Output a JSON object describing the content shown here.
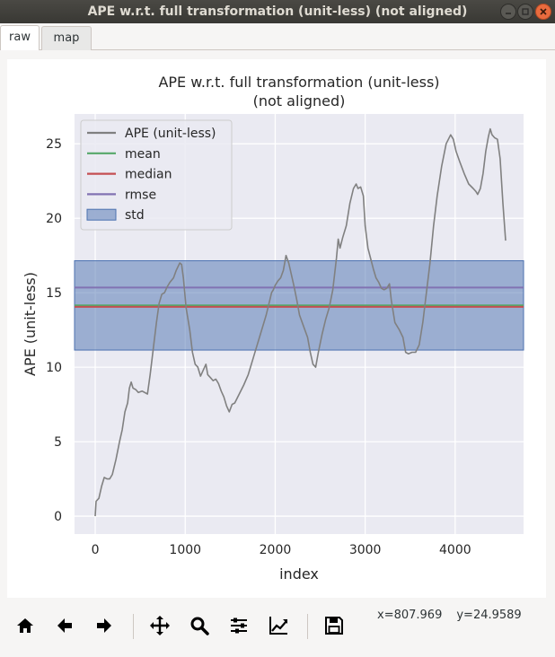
{
  "window": {
    "title": "APE w.r.t. full transformation (unit-less) (not aligned)"
  },
  "tabs": [
    {
      "label": "raw",
      "active": true
    },
    {
      "label": "map",
      "active": false
    }
  ],
  "toolbar": {
    "icons": [
      "home-icon",
      "back-arrow-icon",
      "forward-arrow-icon",
      "pan-icon",
      "zoom-icon",
      "subplots-icon",
      "edit-axes-icon",
      "save-icon"
    ],
    "coords": {
      "x": "x=807.969",
      "y": "y=24.9589"
    }
  },
  "chart_data": {
    "type": "line",
    "title_line1": "APE w.r.t. full transformation (unit-less)",
    "title_line2": "(not aligned)",
    "xlabel": "index",
    "ylabel": "APE (unit-less)",
    "xlim": [
      -230,
      4760
    ],
    "ylim": [
      -1.2,
      27
    ],
    "xticks": [
      0,
      1000,
      2000,
      3000,
      4000
    ],
    "yticks": [
      0,
      5,
      10,
      15,
      20,
      25
    ],
    "grid": true,
    "legend_position": "top-left",
    "legend": [
      {
        "label": "APE (unit-less)",
        "color": "#808080",
        "kind": "line"
      },
      {
        "label": "mean",
        "color": "#55a868",
        "kind": "line"
      },
      {
        "label": "median",
        "color": "#c44e52",
        "kind": "line"
      },
      {
        "label": "rmse",
        "color": "#8172b2",
        "kind": "line"
      },
      {
        "label": "std",
        "color": "#4c72b0",
        "kind": "patch"
      }
    ],
    "stats": {
      "mean": 14.15,
      "median": 14.05,
      "rmse": 15.35,
      "std_low": 11.15,
      "std_high": 17.15
    },
    "series": {
      "name": "APE (unit-less)",
      "color": "#808080",
      "points": [
        [
          0,
          0.0
        ],
        [
          10,
          1.0
        ],
        [
          40,
          1.2
        ],
        [
          70,
          2.0
        ],
        [
          100,
          2.6
        ],
        [
          130,
          2.5
        ],
        [
          160,
          2.5
        ],
        [
          190,
          2.8
        ],
        [
          230,
          3.8
        ],
        [
          270,
          5.0
        ],
        [
          300,
          5.8
        ],
        [
          330,
          7.0
        ],
        [
          360,
          7.6
        ],
        [
          380,
          8.6
        ],
        [
          400,
          9.0
        ],
        [
          420,
          8.6
        ],
        [
          450,
          8.5
        ],
        [
          480,
          8.3
        ],
        [
          520,
          8.4
        ],
        [
          580,
          8.2
        ],
        [
          610,
          9.5
        ],
        [
          640,
          11.0
        ],
        [
          680,
          13.0
        ],
        [
          710,
          14.3
        ],
        [
          740,
          14.9
        ],
        [
          770,
          15.0
        ],
        [
          800,
          15.4
        ],
        [
          830,
          15.7
        ],
        [
          870,
          16.0
        ],
        [
          900,
          16.5
        ],
        [
          940,
          17.0
        ],
        [
          960,
          16.9
        ],
        [
          980,
          16.0
        ],
        [
          1010,
          14.0
        ],
        [
          1050,
          12.5
        ],
        [
          1080,
          11.0
        ],
        [
          1110,
          10.2
        ],
        [
          1140,
          10.0
        ],
        [
          1170,
          9.4
        ],
        [
          1200,
          9.8
        ],
        [
          1230,
          10.2
        ],
        [
          1250,
          9.5
        ],
        [
          1280,
          9.3
        ],
        [
          1310,
          9.1
        ],
        [
          1340,
          9.2
        ],
        [
          1370,
          8.9
        ],
        [
          1400,
          8.4
        ],
        [
          1430,
          8.0
        ],
        [
          1460,
          7.4
        ],
        [
          1490,
          7.0
        ],
        [
          1520,
          7.5
        ],
        [
          1550,
          7.6
        ],
        [
          1600,
          8.2
        ],
        [
          1650,
          8.8
        ],
        [
          1700,
          9.5
        ],
        [
          1750,
          10.5
        ],
        [
          1800,
          11.5
        ],
        [
          1850,
          12.5
        ],
        [
          1900,
          13.5
        ],
        [
          1940,
          14.5
        ],
        [
          1960,
          15.0
        ],
        [
          1980,
          15.2
        ],
        [
          2000,
          15.5
        ],
        [
          2030,
          15.8
        ],
        [
          2060,
          16.0
        ],
        [
          2090,
          16.5
        ],
        [
          2120,
          17.5
        ],
        [
          2150,
          17.0
        ],
        [
          2180,
          16.2
        ],
        [
          2210,
          15.4
        ],
        [
          2240,
          14.5
        ],
        [
          2270,
          13.5
        ],
        [
          2300,
          13.0
        ],
        [
          2330,
          12.5
        ],
        [
          2360,
          12.0
        ],
        [
          2390,
          11.0
        ],
        [
          2420,
          10.2
        ],
        [
          2450,
          10.0
        ],
        [
          2480,
          11.0
        ],
        [
          2520,
          12.2
        ],
        [
          2560,
          13.2
        ],
        [
          2600,
          14.0
        ],
        [
          2640,
          15.2
        ],
        [
          2680,
          17.3
        ],
        [
          2700,
          18.6
        ],
        [
          2720,
          18.0
        ],
        [
          2750,
          18.7
        ],
        [
          2790,
          19.5
        ],
        [
          2830,
          21.0
        ],
        [
          2870,
          22.0
        ],
        [
          2900,
          22.3
        ],
        [
          2920,
          22.0
        ],
        [
          2950,
          22.1
        ],
        [
          2980,
          21.5
        ],
        [
          3000,
          19.5
        ],
        [
          3030,
          18.0
        ],
        [
          3060,
          17.3
        ],
        [
          3090,
          16.6
        ],
        [
          3120,
          16.0
        ],
        [
          3150,
          15.7
        ],
        [
          3180,
          15.3
        ],
        [
          3210,
          15.2
        ],
        [
          3240,
          15.3
        ],
        [
          3270,
          15.6
        ],
        [
          3290,
          14.5
        ],
        [
          3330,
          13.0
        ],
        [
          3380,
          12.5
        ],
        [
          3420,
          12.0
        ],
        [
          3450,
          11.0
        ],
        [
          3480,
          10.9
        ],
        [
          3520,
          11.0
        ],
        [
          3560,
          11.0
        ],
        [
          3600,
          11.5
        ],
        [
          3640,
          13.0
        ],
        [
          3680,
          15.0
        ],
        [
          3720,
          17.0
        ],
        [
          3760,
          19.5
        ],
        [
          3800,
          21.5
        ],
        [
          3850,
          23.5
        ],
        [
          3900,
          25.0
        ],
        [
          3950,
          25.6
        ],
        [
          3980,
          25.3
        ],
        [
          4010,
          24.5
        ],
        [
          4050,
          23.8
        ],
        [
          4100,
          23.0
        ],
        [
          4150,
          22.3
        ],
        [
          4200,
          22.0
        ],
        [
          4230,
          21.8
        ],
        [
          4250,
          21.6
        ],
        [
          4280,
          22.0
        ],
        [
          4310,
          23.0
        ],
        [
          4340,
          24.5
        ],
        [
          4370,
          25.5
        ],
        [
          4390,
          26.0
        ],
        [
          4410,
          25.6
        ],
        [
          4440,
          25.4
        ],
        [
          4470,
          25.3
        ],
        [
          4500,
          24.0
        ],
        [
          4530,
          21.0
        ],
        [
          4560,
          18.5
        ]
      ]
    }
  }
}
